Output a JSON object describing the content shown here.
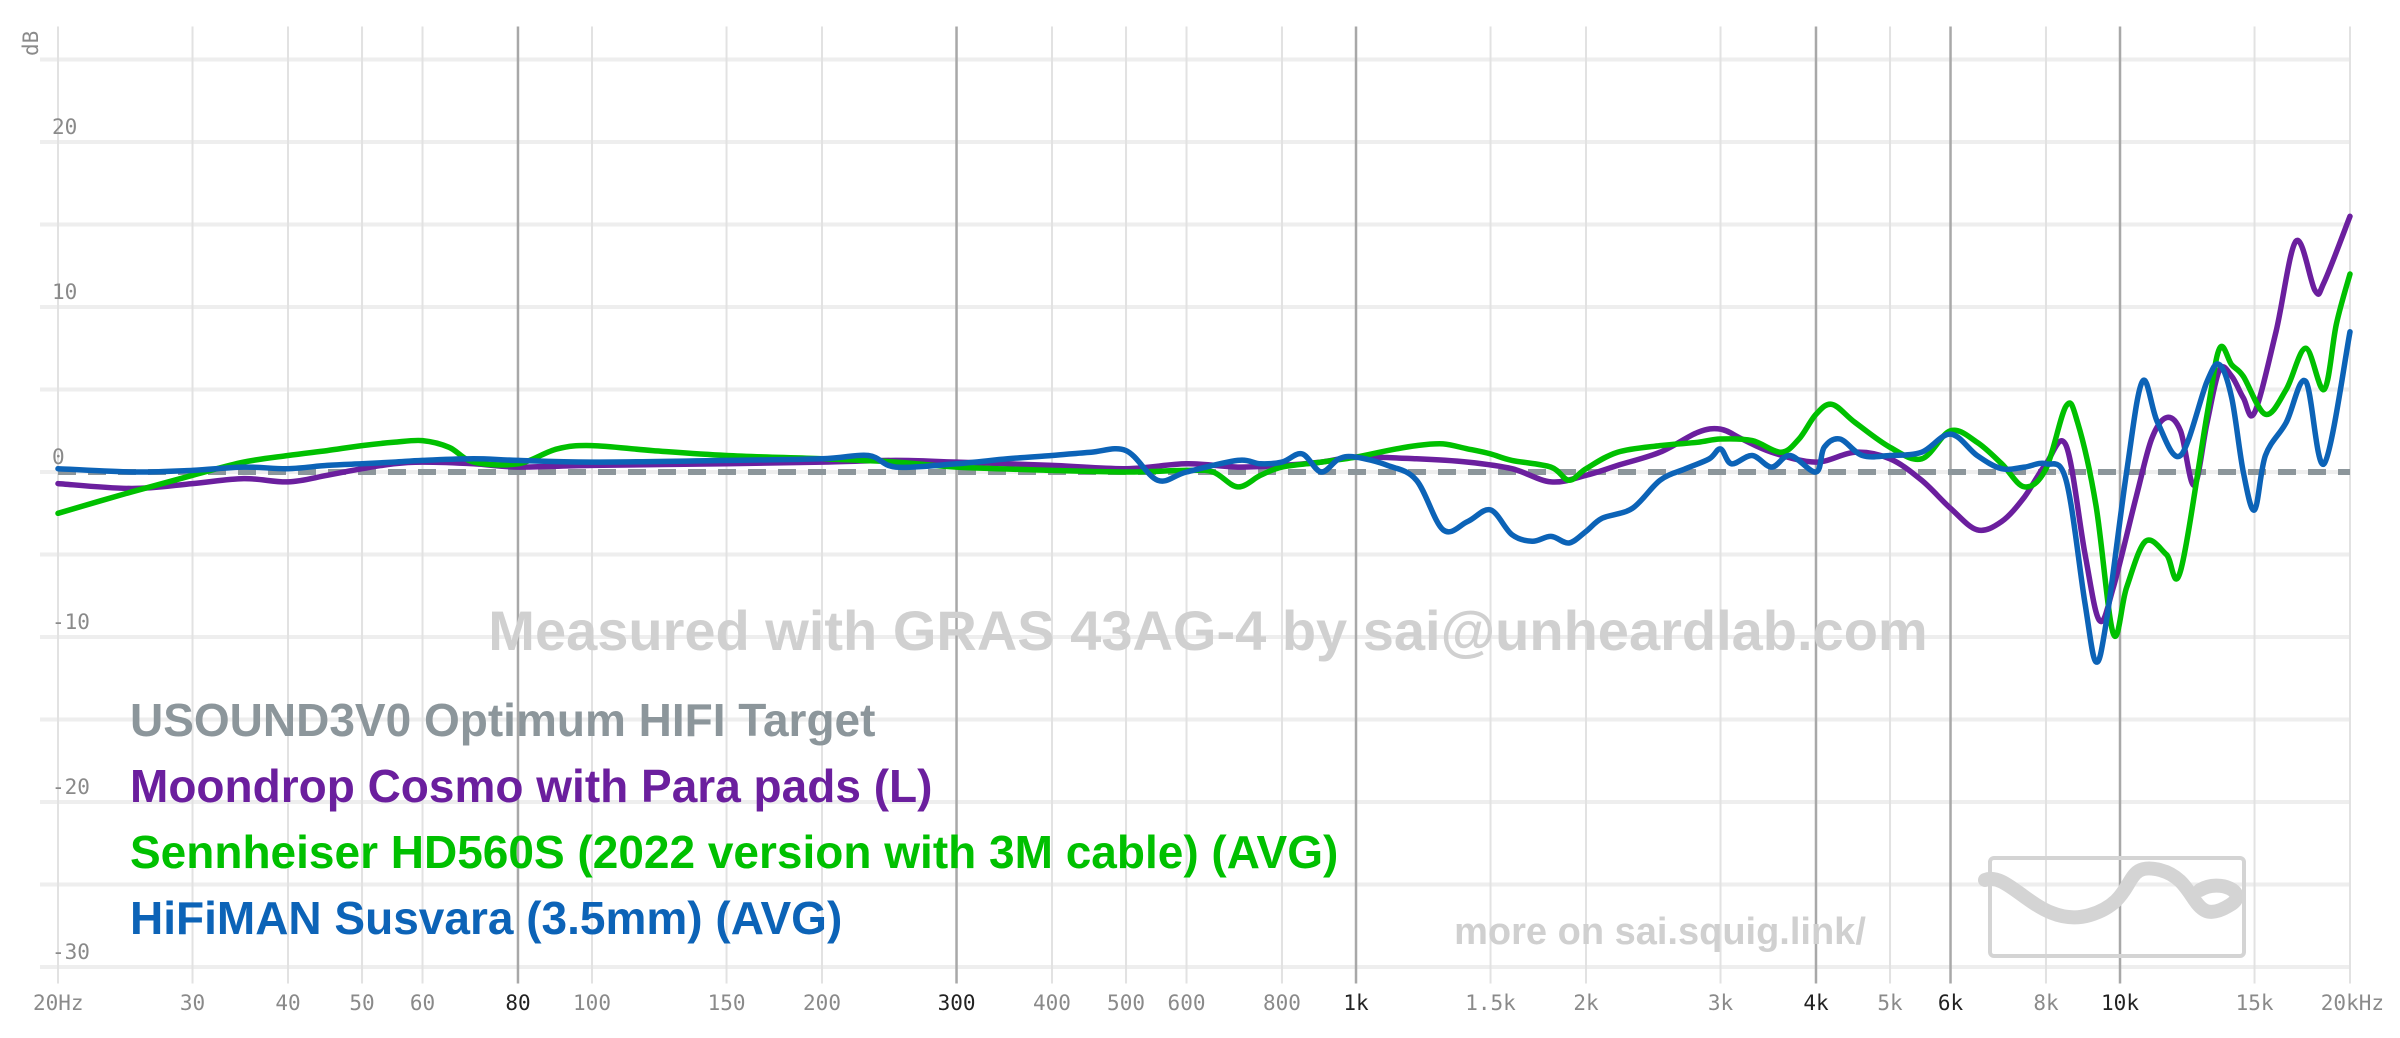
{
  "chart_data": {
    "type": "line",
    "title": "",
    "xlabel": "",
    "ylabel": "dB",
    "x_scale": "log",
    "xlim": [
      20,
      20000
    ],
    "ylim": [
      -30,
      25
    ],
    "grid": true,
    "legend_position": "bottom-left",
    "x_ticks": [
      {
        "v": 20,
        "label": "20Hz",
        "major": false
      },
      {
        "v": 30,
        "label": "30",
        "major": false
      },
      {
        "v": 40,
        "label": "40",
        "major": false
      },
      {
        "v": 50,
        "label": "50",
        "major": false
      },
      {
        "v": 60,
        "label": "60",
        "major": false
      },
      {
        "v": 80,
        "label": "80",
        "major": true
      },
      {
        "v": 100,
        "label": "100",
        "major": false
      },
      {
        "v": 150,
        "label": "150",
        "major": false
      },
      {
        "v": 200,
        "label": "200",
        "major": false
      },
      {
        "v": 300,
        "label": "300",
        "major": true
      },
      {
        "v": 400,
        "label": "400",
        "major": false
      },
      {
        "v": 500,
        "label": "500",
        "major": false
      },
      {
        "v": 600,
        "label": "600",
        "major": false
      },
      {
        "v": 800,
        "label": "800",
        "major": false
      },
      {
        "v": 1000,
        "label": "1k",
        "major": true
      },
      {
        "v": 1500,
        "label": "1.5k",
        "major": false
      },
      {
        "v": 2000,
        "label": "2k",
        "major": false
      },
      {
        "v": 3000,
        "label": "3k",
        "major": false
      },
      {
        "v": 4000,
        "label": "4k",
        "major": true
      },
      {
        "v": 5000,
        "label": "5k",
        "major": false
      },
      {
        "v": 6000,
        "label": "6k",
        "major": true
      },
      {
        "v": 8000,
        "label": "8k",
        "major": false
      },
      {
        "v": 10000,
        "label": "10k",
        "major": true
      },
      {
        "v": 15000,
        "label": "15k",
        "major": false
      },
      {
        "v": 20000,
        "label": "20kHz",
        "major": false
      }
    ],
    "y_ticks": [
      {
        "v": 20,
        "label": "20"
      },
      {
        "v": 10,
        "label": "10"
      },
      {
        "v": 0,
        "label": "0"
      },
      {
        "v": -10,
        "label": "-10"
      },
      {
        "v": -20,
        "label": "-20"
      },
      {
        "v": -30,
        "label": "-30"
      }
    ],
    "series": [
      {
        "name": "USOUND3V0 Optimum HIFI Target",
        "color": "#8c969b",
        "dashed": true,
        "points": [
          [
            20,
            0
          ],
          [
            20000,
            0
          ]
        ]
      },
      {
        "name": "Moondrop Cosmo with Para pads (L)",
        "color": "#6b1f9e",
        "dashed": false,
        "points": [
          [
            20,
            -0.7
          ],
          [
            25,
            -1.0
          ],
          [
            30,
            -0.7
          ],
          [
            35,
            -0.4
          ],
          [
            40,
            -0.6
          ],
          [
            45,
            -0.2
          ],
          [
            50,
            0.2
          ],
          [
            55,
            0.5
          ],
          [
            60,
            0.6
          ],
          [
            70,
            0.5
          ],
          [
            80,
            0.3
          ],
          [
            100,
            0.4
          ],
          [
            150,
            0.5
          ],
          [
            200,
            0.6
          ],
          [
            250,
            0.7
          ],
          [
            300,
            0.6
          ],
          [
            400,
            0.4
          ],
          [
            500,
            0.2
          ],
          [
            600,
            0.5
          ],
          [
            700,
            0.3
          ],
          [
            800,
            0.4
          ],
          [
            900,
            0.6
          ],
          [
            1000,
            0.9
          ],
          [
            1200,
            0.8
          ],
          [
            1400,
            0.6
          ],
          [
            1600,
            0.2
          ],
          [
            1800,
            -0.6
          ],
          [
            2000,
            -0.2
          ],
          [
            2200,
            0.4
          ],
          [
            2500,
            1.2
          ],
          [
            2800,
            2.4
          ],
          [
            3000,
            2.6
          ],
          [
            3200,
            2.0
          ],
          [
            3500,
            1.2
          ],
          [
            4000,
            0.6
          ],
          [
            4500,
            1.2
          ],
          [
            5000,
            0.8
          ],
          [
            5500,
            -0.5
          ],
          [
            6000,
            -2.2
          ],
          [
            6500,
            -3.5
          ],
          [
            7000,
            -3.0
          ],
          [
            7500,
            -1.5
          ],
          [
            8000,
            0.5
          ],
          [
            8500,
            1.6
          ],
          [
            9000,
            -5.0
          ],
          [
            9400,
            -9.0
          ],
          [
            9800,
            -7.0
          ],
          [
            10500,
            -1.5
          ],
          [
            11000,
            2.0
          ],
          [
            11500,
            3.3
          ],
          [
            12000,
            2.5
          ],
          [
            12500,
            -0.8
          ],
          [
            13000,
            3.0
          ],
          [
            13500,
            6.2
          ],
          [
            14000,
            5.8
          ],
          [
            14500,
            4.5
          ],
          [
            15000,
            3.6
          ],
          [
            16000,
            8.5
          ],
          [
            17000,
            14.0
          ],
          [
            18000,
            11.0
          ],
          [
            18500,
            11.5
          ],
          [
            20000,
            15.5
          ]
        ]
      },
      {
        "name": "Sennheiser HD560S (2022 version with 3M cable) (AVG)",
        "color": "#00c000",
        "dashed": false,
        "points": [
          [
            20,
            -2.5
          ],
          [
            25,
            -1.2
          ],
          [
            30,
            -0.2
          ],
          [
            35,
            0.6
          ],
          [
            40,
            1.0
          ],
          [
            45,
            1.3
          ],
          [
            50,
            1.6
          ],
          [
            55,
            1.8
          ],
          [
            60,
            1.9
          ],
          [
            65,
            1.5
          ],
          [
            70,
            0.6
          ],
          [
            80,
            0.5
          ],
          [
            90,
            1.4
          ],
          [
            100,
            1.6
          ],
          [
            120,
            1.3
          ],
          [
            150,
            1.0
          ],
          [
            200,
            0.8
          ],
          [
            250,
            0.6
          ],
          [
            300,
            0.3
          ],
          [
            400,
            0.1
          ],
          [
            500,
            0.0
          ],
          [
            600,
            0.1
          ],
          [
            650,
            0.0
          ],
          [
            700,
            -0.9
          ],
          [
            750,
            -0.2
          ],
          [
            800,
            0.3
          ],
          [
            900,
            0.6
          ],
          [
            1000,
            0.9
          ],
          [
            1100,
            1.3
          ],
          [
            1200,
            1.6
          ],
          [
            1300,
            1.7
          ],
          [
            1400,
            1.4
          ],
          [
            1500,
            1.1
          ],
          [
            1600,
            0.7
          ],
          [
            1800,
            0.3
          ],
          [
            1900,
            -0.5
          ],
          [
            2000,
            0.2
          ],
          [
            2200,
            1.2
          ],
          [
            2500,
            1.6
          ],
          [
            2800,
            1.8
          ],
          [
            3000,
            2.0
          ],
          [
            3300,
            1.9
          ],
          [
            3600,
            1.2
          ],
          [
            3800,
            2.0
          ],
          [
            4000,
            3.5
          ],
          [
            4200,
            4.1
          ],
          [
            4500,
            3.0
          ],
          [
            5000,
            1.5
          ],
          [
            5500,
            0.8
          ],
          [
            6000,
            2.5
          ],
          [
            6500,
            1.8
          ],
          [
            7000,
            0.5
          ],
          [
            7500,
            -0.9
          ],
          [
            8000,
            0.2
          ],
          [
            8500,
            4.0
          ],
          [
            8800,
            3.0
          ],
          [
            9300,
            -2.0
          ],
          [
            9800,
            -9.8
          ],
          [
            10200,
            -7.0
          ],
          [
            10800,
            -4.2
          ],
          [
            11500,
            -5.0
          ],
          [
            12000,
            -6.0
          ],
          [
            13000,
            3.5
          ],
          [
            13500,
            7.5
          ],
          [
            14000,
            6.5
          ],
          [
            14500,
            5.8
          ],
          [
            15500,
            3.5
          ],
          [
            16500,
            5.0
          ],
          [
            17500,
            7.5
          ],
          [
            18500,
            5.0
          ],
          [
            19200,
            9.0
          ],
          [
            20000,
            12.0
          ]
        ]
      },
      {
        "name": "HiFiMAN Susvara (3.5mm) (AVG)",
        "color": "#0c63b7",
        "dashed": false,
        "points": [
          [
            20,
            0.2
          ],
          [
            25,
            0.0
          ],
          [
            30,
            0.1
          ],
          [
            35,
            0.3
          ],
          [
            40,
            0.2
          ],
          [
            45,
            0.4
          ],
          [
            50,
            0.5
          ],
          [
            55,
            0.6
          ],
          [
            60,
            0.7
          ],
          [
            70,
            0.8
          ],
          [
            80,
            0.7
          ],
          [
            100,
            0.6
          ],
          [
            150,
            0.7
          ],
          [
            200,
            0.8
          ],
          [
            230,
            1.0
          ],
          [
            250,
            0.3
          ],
          [
            300,
            0.5
          ],
          [
            350,
            0.8
          ],
          [
            400,
            1.0
          ],
          [
            450,
            1.2
          ],
          [
            500,
            1.3
          ],
          [
            550,
            -0.5
          ],
          [
            600,
            0.0
          ],
          [
            700,
            0.7
          ],
          [
            750,
            0.5
          ],
          [
            800,
            0.6
          ],
          [
            850,
            1.1
          ],
          [
            900,
            0.0
          ],
          [
            950,
            0.8
          ],
          [
            1000,
            0.9
          ],
          [
            1100,
            0.4
          ],
          [
            1200,
            -0.5
          ],
          [
            1300,
            -3.5
          ],
          [
            1400,
            -3.0
          ],
          [
            1500,
            -2.3
          ],
          [
            1600,
            -3.8
          ],
          [
            1700,
            -4.2
          ],
          [
            1800,
            -3.9
          ],
          [
            1900,
            -4.3
          ],
          [
            2000,
            -3.6
          ],
          [
            2100,
            -2.8
          ],
          [
            2300,
            -2.2
          ],
          [
            2500,
            -0.5
          ],
          [
            2700,
            0.2
          ],
          [
            2900,
            0.8
          ],
          [
            3000,
            1.4
          ],
          [
            3100,
            0.5
          ],
          [
            3300,
            1.0
          ],
          [
            3500,
            0.3
          ],
          [
            3700,
            1.0
          ],
          [
            4000,
            0.0
          ],
          [
            4100,
            1.5
          ],
          [
            4300,
            2.0
          ],
          [
            4600,
            1.0
          ],
          [
            5000,
            1.0
          ],
          [
            5500,
            1.2
          ],
          [
            6000,
            2.3
          ],
          [
            6500,
            1.0
          ],
          [
            7000,
            0.2
          ],
          [
            7500,
            0.3
          ],
          [
            8000,
            0.5
          ],
          [
            8500,
            -0.5
          ],
          [
            9000,
            -8.0
          ],
          [
            9300,
            -11.5
          ],
          [
            9600,
            -9.0
          ],
          [
            10200,
            0.0
          ],
          [
            10700,
            5.5
          ],
          [
            11200,
            3.0
          ],
          [
            12000,
            1.0
          ],
          [
            13000,
            5.5
          ],
          [
            13500,
            6.5
          ],
          [
            14000,
            4.5
          ],
          [
            14500,
            0.0
          ],
          [
            15000,
            -2.3
          ],
          [
            15500,
            1.0
          ],
          [
            16500,
            3.0
          ],
          [
            17500,
            5.5
          ],
          [
            18500,
            0.5
          ],
          [
            20000,
            8.5
          ]
        ]
      }
    ],
    "annotations": [
      "Measured with GRAS 43AG-4 by sai@unheardlab.com",
      "more on sai.squig.link/"
    ]
  }
}
